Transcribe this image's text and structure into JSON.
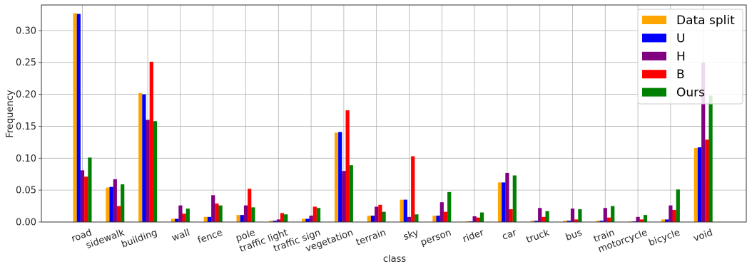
{
  "chart_data": {
    "type": "bar",
    "xlabel": "class",
    "ylabel": "Frequency",
    "ylim": [
      0,
      0.34
    ],
    "yticks": [
      "0.00",
      "0.05",
      "0.10",
      "0.15",
      "0.20",
      "0.25",
      "0.30"
    ],
    "grid": true,
    "legend_position": "top-right",
    "categories": [
      "road",
      "sidewalk",
      "building",
      "wall",
      "fence",
      "pole",
      "traffic light",
      "traffic sign",
      "vegetation",
      "terrain",
      "sky",
      "person",
      "rider",
      "car",
      "truck",
      "bus",
      "train",
      "motorcycle",
      "bicycle",
      "void"
    ],
    "series": [
      {
        "name": "Data split",
        "color": "#ffa500",
        "values": [
          0.327,
          0.054,
          0.202,
          0.005,
          0.008,
          0.011,
          0.002,
          0.005,
          0.14,
          0.01,
          0.035,
          0.01,
          0.001,
          0.062,
          0.002,
          0.002,
          0.002,
          0.001,
          0.004,
          0.116
        ]
      },
      {
        "name": "U",
        "color": "#0000ff",
        "values": [
          0.326,
          0.055,
          0.2,
          0.005,
          0.008,
          0.011,
          0.002,
          0.005,
          0.141,
          0.01,
          0.035,
          0.01,
          0.001,
          0.062,
          0.002,
          0.002,
          0.002,
          0.001,
          0.004,
          0.117
        ]
      },
      {
        "name": "H",
        "color": "#800080",
        "values": [
          0.081,
          0.067,
          0.16,
          0.026,
          0.042,
          0.026,
          0.004,
          0.01,
          0.08,
          0.024,
          0.008,
          0.031,
          0.009,
          0.077,
          0.022,
          0.021,
          0.022,
          0.008,
          0.026,
          0.25
        ]
      },
      {
        "name": "B",
        "color": "#ff0000",
        "values": [
          0.071,
          0.025,
          0.251,
          0.013,
          0.029,
          0.052,
          0.014,
          0.024,
          0.175,
          0.027,
          0.103,
          0.016,
          0.007,
          0.02,
          0.008,
          0.004,
          0.007,
          0.004,
          0.019,
          0.129
        ]
      },
      {
        "name": "Ours",
        "color": "#008000",
        "values": [
          0.101,
          0.059,
          0.158,
          0.021,
          0.026,
          0.023,
          0.012,
          0.022,
          0.089,
          0.016,
          0.012,
          0.047,
          0.015,
          0.073,
          0.017,
          0.02,
          0.025,
          0.011,
          0.051,
          0.198
        ]
      }
    ]
  }
}
